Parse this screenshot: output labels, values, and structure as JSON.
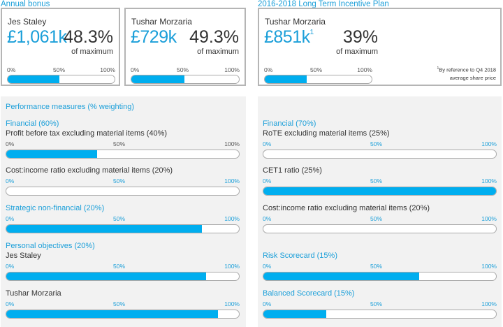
{
  "annual_bonus": {
    "title": "Annual bonus",
    "cards": [
      {
        "name": "Jes Staley",
        "amount": "£1,061k",
        "percent": "48.3%",
        "of_max": "of maximum",
        "fill": 0.483
      },
      {
        "name": "Tushar Morzaria",
        "amount": "£729k",
        "percent": "49.3%",
        "of_max": "of maximum",
        "fill": 0.493
      }
    ]
  },
  "ltip": {
    "title": "2016-2018 Long Term Incentive Plan",
    "card": {
      "name": "Tushar Morzaria",
      "amount": "£851k",
      "sup": "1",
      "percent": "39%",
      "of_max": "of maximum",
      "fill": 0.39,
      "footnote_mark": "1",
      "footnote_line1": "By reference to Q4 2018",
      "footnote_line2": "average share price"
    }
  },
  "ticks": {
    "zero": "0%",
    "half": "50%",
    "full": "100%"
  },
  "performance": {
    "title": "Performance measures (% weighting)",
    "left": {
      "financial_heading": "Financial (60%)",
      "profit_label": "Profit before tax excluding material items (40%)",
      "profit_fill": 0.39,
      "cost_label": "Cost:income ratio excluding material items (20%)",
      "cost_fill": 0.0,
      "strategic_heading": "Strategic non-financial (20%)",
      "strategic_fill": 0.84,
      "personal_heading": "Personal objectives (20%)",
      "jes_label": "Jes Staley",
      "jes_fill": 0.86,
      "tushar_label": "Tushar Morzaria",
      "tushar_fill": 0.91
    },
    "right": {
      "financial_heading": "Financial (70%)",
      "rote_label": "RoTE excluding material items (25%)",
      "rote_fill": 0.0,
      "cet1_label": "CET1 ratio (25%)",
      "cet1_fill": 1.0,
      "cost_label": "Cost:income ratio excluding material items (20%)",
      "cost_fill": 0.0,
      "risk_heading": "Risk Scorecard (15%)",
      "risk_fill": 0.67,
      "balanced_heading": "Balanced Scorecard (15%)",
      "balanced_fill": 0.27
    }
  }
}
